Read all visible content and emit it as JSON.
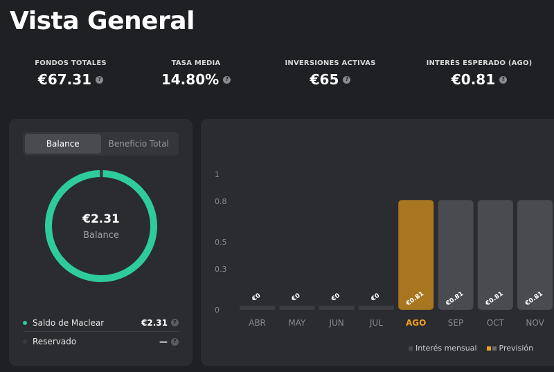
{
  "header": {
    "title": "Vista General"
  },
  "stats": [
    {
      "label": "FONDOS TOTALES",
      "value": "€67.31"
    },
    {
      "label": "TASA MEDIA",
      "value": "14.80%"
    },
    {
      "label": "INVERSIONES ACTIVAS",
      "value": "€65"
    },
    {
      "label": "INTERÉS ESPERADO (AGO)",
      "value": "€0.81"
    }
  ],
  "help_glyph": "?",
  "balance_card": {
    "tabs": [
      "Balance",
      "Beneficio Total"
    ],
    "active_tab": "Balance",
    "ring_value": "€2.31",
    "ring_label": "Balance",
    "ring_fill_fraction": 0.99,
    "ring_color": "#2ecc9a",
    "legend": [
      {
        "name": "Saldo de Maclear",
        "value": "€2.31",
        "color": "#2ecc9a"
      },
      {
        "name": "Reservado",
        "value": "—",
        "color": "#3a3b3f"
      }
    ]
  },
  "chart_data": {
    "type": "bar",
    "categories": [
      "ABR",
      "MAY",
      "JUN",
      "JUL",
      "AGO",
      "SEP",
      "OCT",
      "NOV"
    ],
    "values": [
      0,
      0,
      0,
      0,
      0.81,
      0.81,
      0.81,
      0.81
    ],
    "data_labels": [
      "€0",
      "€0",
      "€0",
      "€0",
      "€0.81",
      "€0.81",
      "€0.81",
      "€0.81"
    ],
    "highlight_category": "AGO",
    "forecast_categories": [
      "AGO",
      "SEP",
      "OCT",
      "NOV"
    ],
    "yticks": [
      0,
      0.3,
      0.5,
      0.8,
      1
    ],
    "ytick_labels": [
      "0",
      "0.3",
      "0.5",
      "0.8",
      "1"
    ],
    "ylim": [
      0,
      1
    ],
    "legend": [
      {
        "name": "Interés mensual"
      },
      {
        "name": "Previsión"
      }
    ],
    "legend_placement": "bottom-right",
    "colors": {
      "bar": "#47484d",
      "highlight": "#a87621",
      "highlight_label": "#f0a020",
      "axis_label": "#8a8a8e"
    }
  }
}
